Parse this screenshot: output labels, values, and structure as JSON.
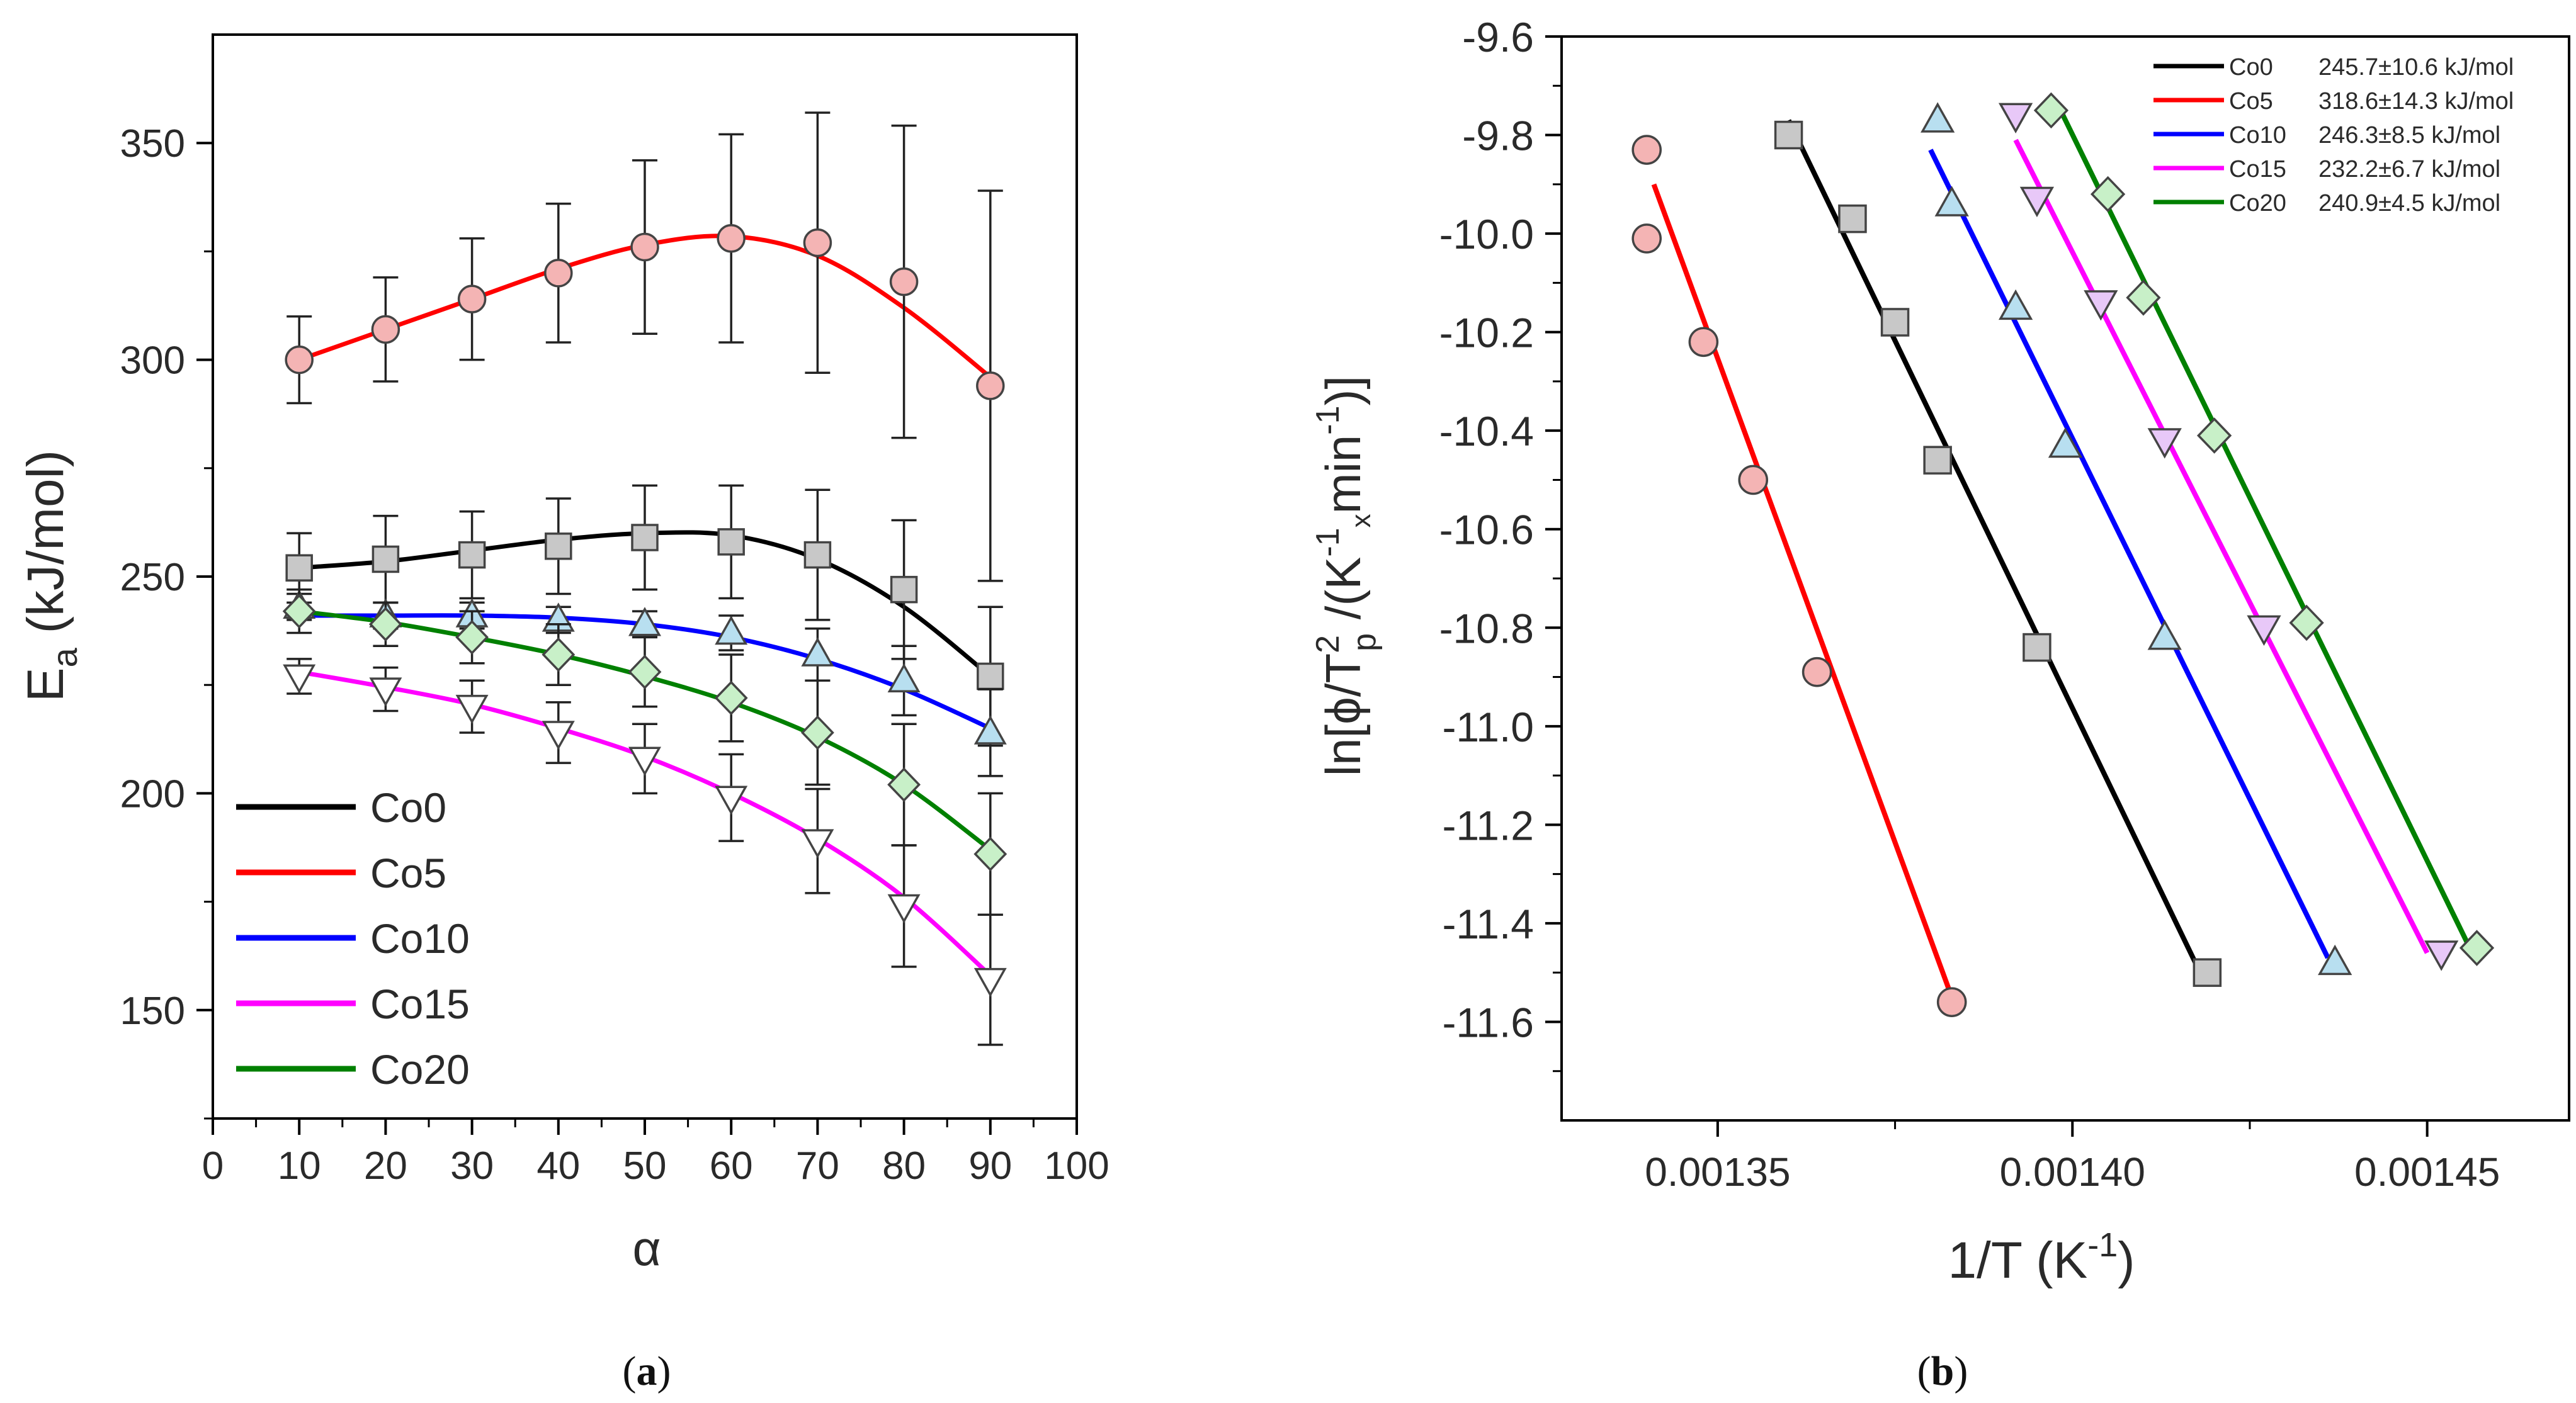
{
  "panel_a": {
    "caption_open": "(",
    "caption_letter": "a",
    "caption_close": ")"
  },
  "panel_b": {
    "caption_open": "(",
    "caption_letter": "b",
    "caption_close": ")"
  },
  "chart_data": [
    {
      "id": "a",
      "type": "line",
      "xlabel": "α",
      "ylabel_main": "E",
      "ylabel_sub": "a",
      "ylabel_rest": " (kJ/mol)",
      "xlim": [
        0,
        100
      ],
      "ylim": [
        125,
        375
      ],
      "xticks": [
        0,
        10,
        20,
        30,
        40,
        50,
        60,
        70,
        80,
        90,
        100
      ],
      "xtick_labels": [
        "0",
        "10",
        "20",
        "30",
        "40",
        "50",
        "60",
        "70",
        "80",
        "90",
        "100"
      ],
      "yticks": [
        150,
        200,
        250,
        300,
        350
      ],
      "ytick_labels": [
        "150",
        "200",
        "250",
        "300",
        "350"
      ],
      "legend": "bottom-left",
      "x": [
        10,
        20,
        30,
        40,
        50,
        60,
        70,
        80,
        90
      ],
      "series": [
        {
          "name": "Co0",
          "color": "#000000",
          "marker": "square",
          "fill": "#c8c8c8",
          "values": [
            252,
            254,
            255,
            257,
            259,
            258,
            255,
            247,
            227
          ],
          "errors": [
            8,
            10,
            10,
            11,
            12,
            13,
            15,
            16,
            16
          ],
          "fit": [
            252,
            253.5,
            256,
            258.5,
            260,
            259.5,
            254,
            243,
            227
          ]
        },
        {
          "name": "Co5",
          "color": "#ff0000",
          "marker": "circle",
          "fill": "#f4b4b4",
          "values": [
            300,
            307,
            314,
            320,
            326,
            328,
            327,
            318,
            294
          ],
          "errors": [
            10,
            12,
            14,
            16,
            20,
            24,
            30,
            36,
            45
          ],
          "fit": [
            300,
            307,
            314,
            321,
            326.5,
            328.5,
            324,
            312,
            296
          ]
        },
        {
          "name": "Co10",
          "color": "#0000ff",
          "marker": "triangle-up",
          "fill": "#b8dff0",
          "values": [
            243,
            241,
            241,
            240,
            239,
            237,
            232,
            226,
            214
          ],
          "errors": [
            3,
            3,
            3,
            3,
            3,
            4,
            6,
            8,
            10
          ],
          "fit": [
            241,
            241,
            241,
            240.5,
            239,
            236,
            231,
            224,
            215
          ]
        },
        {
          "name": "Co15",
          "color": "#ff00ff",
          "marker": "triangle-down",
          "fill": "#ffffff",
          "values": [
            227,
            224,
            220,
            214,
            208,
            199,
            189,
            174,
            157
          ],
          "errors": [
            4,
            5,
            6,
            7,
            8,
            10,
            12,
            14,
            15
          ],
          "fit": [
            228,
            224.5,
            220.5,
            215,
            208.5,
            200,
            189.5,
            176,
            158
          ]
        },
        {
          "name": "Co20",
          "color": "#008000",
          "marker": "diamond",
          "fill": "#c8f0c8",
          "values": [
            242,
            239,
            236,
            232,
            228,
            222,
            214,
            202,
            186
          ],
          "errors": [
            5,
            5,
            6,
            7,
            8,
            10,
            12,
            14,
            14
          ],
          "fit": [
            242,
            239.5,
            236,
            232,
            227,
            221,
            213,
            202,
            187
          ]
        }
      ]
    },
    {
      "id": "b",
      "type": "scatter",
      "xlabel_main": "1/T (K",
      "xlabel_sup": "-1",
      "xlabel_close": ")",
      "ylabel_parts": [
        "ln[ϕ/T",
        "2",
        "p",
        " /(K",
        "-1",
        "x",
        "min",
        "-1",
        ")]"
      ],
      "xlim": [
        0.001328,
        0.00147
      ],
      "ylim": [
        -11.8,
        -9.6
      ],
      "xticks": [
        0.00135,
        0.0014,
        0.00145
      ],
      "xtick_labels": [
        "0.00135",
        "0.00140",
        "0.00145"
      ],
      "yticks": [
        -9.6,
        -9.8,
        -10.0,
        -10.2,
        -10.4,
        -10.6,
        -10.8,
        -11.0,
        -11.2,
        -11.4,
        -11.6
      ],
      "ytick_labels": [
        "-9.6",
        "-9.8",
        "-10.0",
        "-10.2",
        "-10.4",
        "-10.6",
        "-10.8",
        "-11.0",
        "-11.2",
        "-11.4",
        "-11.6"
      ],
      "legend": "top-right",
      "series": [
        {
          "name": "Co0",
          "value_label": "245.7±10.6 kJ/mol",
          "color": "#000000",
          "marker": "square",
          "fill": "#c8c8c8",
          "points": [
            [
              0.00136,
              -9.8
            ],
            [
              0.001369,
              -9.97
            ],
            [
              0.001375,
              -10.18
            ],
            [
              0.001381,
              -10.46
            ],
            [
              0.001395,
              -10.84
            ],
            [
              0.001419,
              -11.5
            ]
          ],
          "line": [
            [
              0.00136,
              -9.77
            ],
            [
              0.001418,
              -11.5
            ]
          ]
        },
        {
          "name": "Co5",
          "value_label": "318.6±14.3 kJ/mol",
          "color": "#ff0000",
          "marker": "circle",
          "fill": "#f4b4b4",
          "points": [
            [
              0.00134,
              -9.83
            ],
            [
              0.00134,
              -10.01
            ],
            [
              0.001348,
              -10.22
            ],
            [
              0.001355,
              -10.5
            ],
            [
              0.001364,
              -10.89
            ],
            [
              0.001383,
              -11.56
            ]
          ],
          "line": [
            [
              0.001341,
              -9.9
            ],
            [
              0.001383,
              -11.55
            ]
          ]
        },
        {
          "name": "Co10",
          "value_label": "246.3±8.5 kJ/mol",
          "color": "#0000ff",
          "marker": "triangle-up",
          "fill": "#b8dff0",
          "points": [
            [
              0.001381,
              -9.77
            ],
            [
              0.001383,
              -9.94
            ],
            [
              0.001392,
              -10.15
            ],
            [
              0.001399,
              -10.43
            ],
            [
              0.001413,
              -10.82
            ],
            [
              0.001437,
              -11.48
            ]
          ],
          "line": [
            [
              0.00138,
              -9.83
            ],
            [
              0.001436,
              -11.47
            ]
          ]
        },
        {
          "name": "Co15",
          "value_label": "232.2±6.7 kJ/mol",
          "color": "#ff00ff",
          "marker": "triangle-down",
          "fill": "#e8c8f8",
          "points": [
            [
              0.001392,
              -9.76
            ],
            [
              0.001395,
              -9.93
            ],
            [
              0.001404,
              -10.14
            ],
            [
              0.001413,
              -10.42
            ],
            [
              0.001427,
              -10.8
            ],
            [
              0.001452,
              -11.46
            ]
          ],
          "line": [
            [
              0.001392,
              -9.81
            ],
            [
              0.00145,
              -11.46
            ]
          ]
        },
        {
          "name": "Co20",
          "value_label": "240.9±4.5 kJ/mol",
          "color": "#008000",
          "marker": "diamond",
          "fill": "#c8f0c8",
          "points": [
            [
              0.001397,
              -9.75
            ],
            [
              0.001405,
              -9.92
            ],
            [
              0.00141,
              -10.13
            ],
            [
              0.00142,
              -10.41
            ],
            [
              0.001433,
              -10.79
            ],
            [
              0.001457,
              -11.45
            ]
          ],
          "line": [
            [
              0.001398,
              -9.74
            ],
            [
              0.001456,
              -11.45
            ]
          ]
        }
      ]
    }
  ]
}
